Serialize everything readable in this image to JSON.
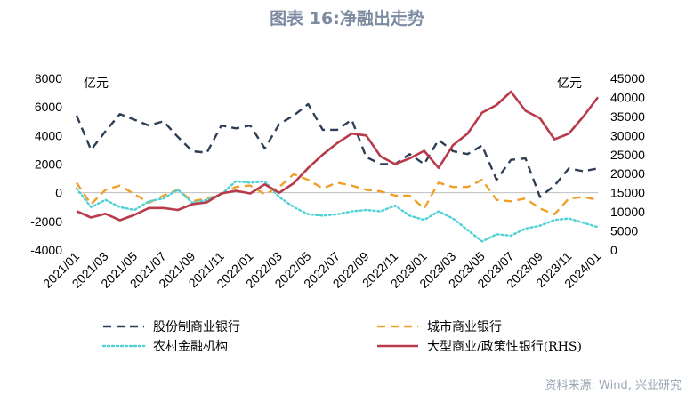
{
  "chart_data": {
    "type": "line",
    "title": "图表 16:净融出走势",
    "source": "资料来源: Wind, 兴业研究",
    "left_axis": {
      "unit": "亿元",
      "ylim": [
        -4000,
        8000
      ],
      "ticks": [
        "-4000",
        "-2000",
        "0",
        "2000",
        "4000",
        "6000",
        "8000"
      ]
    },
    "right_axis": {
      "unit": "亿元",
      "ylim": [
        0,
        45000
      ],
      "ticks": [
        "0",
        "5000",
        "10000",
        "15000",
        "20000",
        "25000",
        "30000",
        "35000",
        "40000",
        "45000"
      ]
    },
    "x_tick_labels": [
      "2021/01",
      "2021/03",
      "2021/05",
      "2021/07",
      "2021/09",
      "2021/11",
      "2022/01",
      "2022/03",
      "2022/05",
      "2022/07",
      "2022/09",
      "2022/11",
      "2023/01",
      "2023/03",
      "2023/05",
      "2023/07",
      "2023/09",
      "2023/11",
      "2024/01"
    ],
    "legend_position": "bottom",
    "series": [
      {
        "name": "股份制商业银行",
        "axis": "left",
        "style": "dashed",
        "color": "#2e3e55",
        "values": [
          5400,
          3000,
          4300,
          5500,
          5100,
          4700,
          5000,
          3900,
          2900,
          2800,
          4700,
          4500,
          4700,
          3100,
          4800,
          5400,
          6200,
          4400,
          4400,
          5100,
          2500,
          2000,
          2000,
          2700,
          2000,
          3700,
          2900,
          2700,
          3300,
          900,
          2300,
          2400,
          -300,
          500,
          1700,
          1500,
          1700
        ]
      },
      {
        "name": "城市商业银行",
        "axis": "left",
        "style": "dashed",
        "color": "#f0a02a",
        "values": [
          700,
          -800,
          200,
          500,
          -100,
          -700,
          -200,
          200,
          -600,
          -400,
          -100,
          400,
          500,
          -100,
          400,
          1300,
          900,
          300,
          700,
          500,
          200,
          100,
          -200,
          -200,
          -1100,
          700,
          400,
          400,
          900,
          -500,
          -600,
          -400,
          -1100,
          -1500,
          -400,
          -300,
          -500
        ]
      },
      {
        "name": "农村金融机构",
        "axis": "left",
        "style": "dotted",
        "color": "#4fd1d6",
        "values": [
          300,
          -1000,
          -500,
          -1000,
          -1200,
          -600,
          -400,
          200,
          -700,
          -500,
          -100,
          800,
          700,
          800,
          -300,
          -1000,
          -1500,
          -1600,
          -1500,
          -1300,
          -1200,
          -1300,
          -900,
          -1600,
          -1900,
          -1300,
          -1800,
          -2600,
          -3400,
          -2900,
          -3000,
          -2500,
          -2300,
          -1900,
          -1800,
          -2100,
          -2400
        ]
      },
      {
        "name": "大型商业/政策性银行(RHS)",
        "axis": "right",
        "style": "solid",
        "color": "#b83b4b",
        "values": [
          10200,
          8500,
          9500,
          7800,
          9200,
          11000,
          11000,
          10500,
          12000,
          12500,
          14800,
          15500,
          14800,
          17200,
          15000,
          17500,
          21500,
          25000,
          28000,
          30500,
          30000,
          24500,
          22500,
          24000,
          26000,
          21500,
          27500,
          30500,
          36000,
          38000,
          41500,
          36500,
          34500,
          29000,
          30500,
          35000,
          40000
        ]
      }
    ]
  }
}
